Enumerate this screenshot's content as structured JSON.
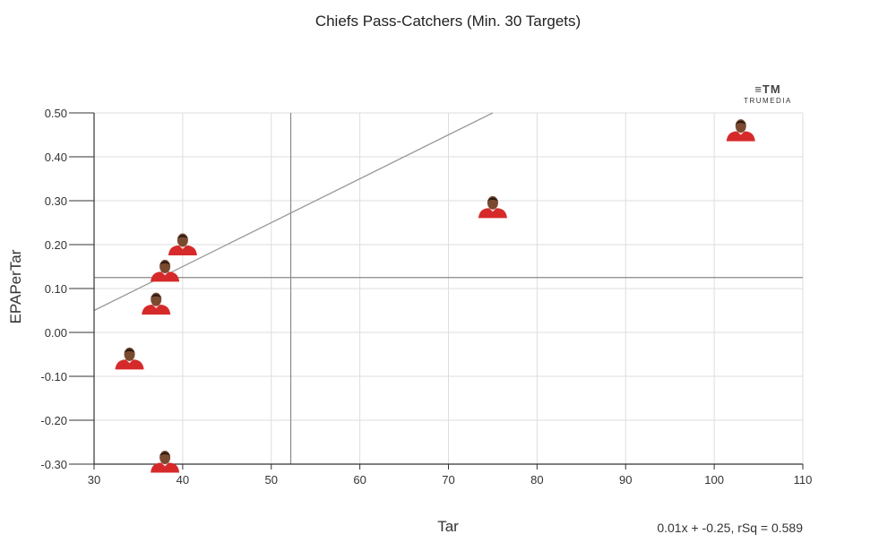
{
  "chart_data": {
    "type": "scatter",
    "title": "Chiefs Pass-Catchers (Min. 30 Targets)",
    "xlabel": "Tar",
    "ylabel": "EPAPerTar",
    "xlim": [
      30,
      110
    ],
    "ylim": [
      -0.3,
      0.5
    ],
    "x_ticks": [
      30,
      40,
      50,
      60,
      70,
      80,
      90,
      100,
      110
    ],
    "y_ticks": [
      -0.3,
      -0.2,
      -0.1,
      0.0,
      0.1,
      0.2,
      0.3,
      0.4,
      0.5
    ],
    "y_tick_labels": [
      "-0.30",
      "-0.20",
      "-0.10",
      "0.00",
      "0.10",
      "0.20",
      "0.30",
      "0.40",
      "0.50"
    ],
    "grid": true,
    "points": [
      {
        "x": 103,
        "y": 0.46
      },
      {
        "x": 75,
        "y": 0.285
      },
      {
        "x": 40,
        "y": 0.2
      },
      {
        "x": 38,
        "y": 0.14
      },
      {
        "x": 37,
        "y": 0.065
      },
      {
        "x": 34,
        "y": -0.06
      },
      {
        "x": 38,
        "y": -0.295
      }
    ],
    "reference_lines": {
      "x_mean": 52.2,
      "y_mean": 0.125
    },
    "trendline": {
      "slope": 0.01,
      "intercept": -0.25,
      "rsq": 0.589
    },
    "trendline_label": "0.01x + -0.25, rSq = 0.589",
    "logo": {
      "mark": "≡TM",
      "text": "TRUMEDIA"
    },
    "colors": {
      "jersey": "#d62a2a",
      "skin": "#7a4a30",
      "grid": "#dddddd",
      "axis": "#333333",
      "ref": "#888888",
      "trend": "#999999"
    }
  }
}
